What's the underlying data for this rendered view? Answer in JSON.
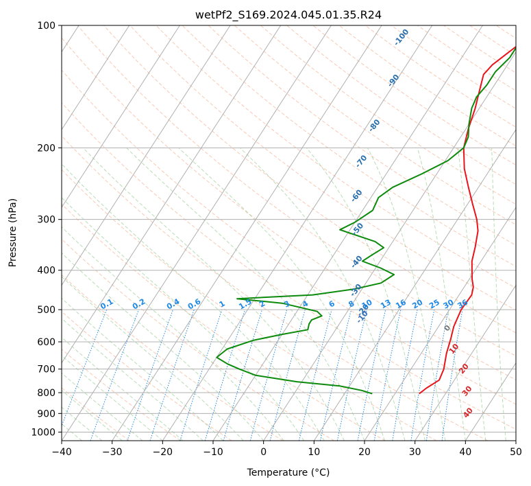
{
  "chart_data": {
    "type": "line",
    "title": "wetPf2_S169.2024.045.01.35.R24",
    "xlabel": "Temperature (°C)",
    "ylabel": "Pressure (hPa)",
    "xlim": [
      -40,
      50
    ],
    "ylim": [
      1050,
      100
    ],
    "y_scale": "log",
    "grid": true,
    "x_ticks": [
      "−40",
      "−30",
      "−20",
      "−10",
      "0",
      "10",
      "20",
      "30",
      "40",
      "50"
    ],
    "y_ticks": [
      "100",
      "200",
      "300",
      "400",
      "500",
      "600",
      "700",
      "800",
      "900",
      "1000"
    ],
    "isotherm_labels": [
      "-100",
      "-90",
      "-80",
      "-70",
      "-60",
      "-50",
      "-40",
      "-30",
      "-20",
      "-10",
      "0",
      "10",
      "20",
      "30",
      "40"
    ],
    "mixing_ratio_labels": [
      "0.1",
      "0.2",
      "0.4",
      "0.6",
      "1",
      "1.5",
      "2",
      "3",
      "4",
      "6",
      "8",
      "10",
      "13",
      "16",
      "20",
      "25",
      "30",
      "36"
    ],
    "series": [
      {
        "color": "#e8141c",
        "points": [
          [
            24.8,
            805
          ],
          [
            25.5,
            780
          ],
          [
            27,
            745
          ],
          [
            26.5,
            700
          ],
          [
            25,
            640
          ],
          [
            24,
            590
          ],
          [
            23,
            550
          ],
          [
            22.3,
            500
          ],
          [
            22.5,
            460
          ],
          [
            21.8,
            440
          ],
          [
            20.5,
            420
          ],
          [
            18.2,
            380
          ],
          [
            17,
            350
          ],
          [
            15.5,
            320
          ],
          [
            13.8,
            300
          ],
          [
            11,
            275
          ],
          [
            8,
            250
          ],
          [
            4.8,
            225
          ],
          [
            2,
            200
          ],
          [
            0.5,
            180
          ],
          [
            -0.8,
            160
          ],
          [
            -2.2,
            145
          ],
          [
            -3.5,
            132
          ],
          [
            -3,
            125
          ],
          [
            -1.5,
            117
          ],
          [
            -0.5,
            112
          ],
          [
            0.2,
            105
          ],
          [
            -0.1,
            100
          ]
        ],
        "label_points": [
          [
            25,
            560
          ],
          [
            29,
            630
          ],
          [
            33.5,
            705
          ],
          [
            37,
            800
          ],
          [
            40,
            905
          ]
        ]
      },
      {
        "color": "#0b8a0b",
        "points": [
          [
            15.5,
            805
          ],
          [
            13,
            790
          ],
          [
            8,
            770
          ],
          [
            -1,
            752
          ],
          [
            -10,
            725
          ],
          [
            -14,
            700
          ],
          [
            -17,
            680
          ],
          [
            -20,
            655
          ],
          [
            -19,
            625
          ],
          [
            -15,
            595
          ],
          [
            -10,
            575
          ],
          [
            -5.5,
            560
          ],
          [
            -6,
            542
          ],
          [
            -6,
            530
          ],
          [
            -4.5,
            518
          ],
          [
            -6,
            505
          ],
          [
            -14,
            482
          ],
          [
            -23.5,
            470
          ],
          [
            -9,
            460
          ],
          [
            -1.5,
            445
          ],
          [
            3,
            430
          ],
          [
            4.5,
            410
          ],
          [
            1,
            395
          ],
          [
            -3.5,
            380
          ],
          [
            -2.5,
            368
          ],
          [
            -1,
            352
          ],
          [
            -3.5,
            340
          ],
          [
            -12,
            318
          ],
          [
            -10,
            305
          ],
          [
            -8,
            285
          ],
          [
            -8.5,
            265
          ],
          [
            -7,
            250
          ],
          [
            -3,
            232
          ],
          [
            0.5,
            215
          ],
          [
            2,
            200
          ],
          [
            1.5,
            188
          ],
          [
            0,
            175
          ],
          [
            -1.5,
            160
          ],
          [
            -2,
            150
          ],
          [
            -1.5,
            140
          ],
          [
            -1.5,
            130
          ],
          [
            -0.5,
            120
          ],
          [
            -0.5,
            112
          ],
          [
            0.5,
            105
          ],
          [
            1,
            100
          ]
        ]
      }
    ]
  }
}
